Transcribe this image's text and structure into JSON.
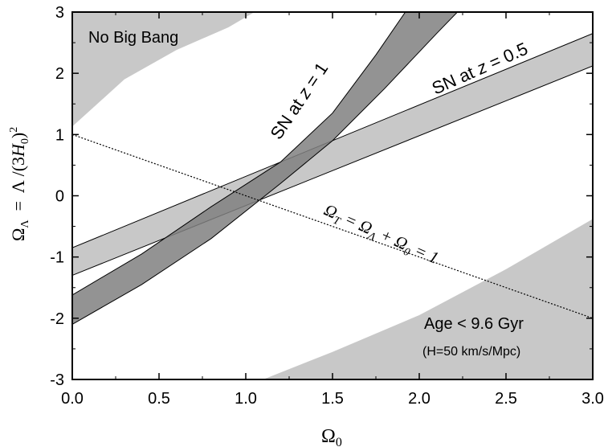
{
  "chart_data": {
    "type": "area",
    "xlabel": "Ω0",
    "ylabel": "ΩΛ = Λ/(3H0)²",
    "xlim": [
      0.0,
      3.0
    ],
    "ylim": [
      -3,
      3
    ],
    "x_ticks": [
      "0.0",
      "0.5",
      "1.0",
      "1.5",
      "2.0",
      "2.5",
      "3.0"
    ],
    "y_ticks": [
      "3",
      "2",
      "1",
      "0",
      "-1",
      "-2",
      "-3"
    ],
    "grid": false,
    "regions": [
      {
        "name": "No Big Bang",
        "fill": "#c8c8c8",
        "boundary": [
          [
            0.0,
            1.13
          ],
          [
            0.3,
            1.9
          ],
          [
            0.6,
            2.38
          ],
          [
            0.9,
            2.75
          ],
          [
            1.05,
            3.0
          ]
        ],
        "label": "No Big Bang"
      },
      {
        "name": "Age < 9.6 Gyr",
        "fill": "#c8c8c8",
        "boundary": [
          [
            1.1,
            -3.0
          ],
          [
            1.5,
            -2.55
          ],
          [
            2.0,
            -1.95
          ],
          [
            2.5,
            -1.2
          ],
          [
            3.0,
            -0.38
          ]
        ],
        "label": "Age < 9.6 Gyr",
        "sublabel": "(H=50 km/s/Mpc)"
      }
    ],
    "series": [
      {
        "name": "SN at z = 0.5",
        "fill": "#c8c8c8",
        "upper": [
          [
            0.0,
            -0.85
          ],
          [
            3.0,
            2.65
          ]
        ],
        "lower": [
          [
            0.0,
            -1.3
          ],
          [
            3.0,
            2.12
          ]
        ]
      },
      {
        "name": "SN at z = 1",
        "fill": "#808080",
        "upper": [
          [
            0.0,
            -1.62
          ],
          [
            0.4,
            -0.95
          ],
          [
            0.8,
            -0.18
          ],
          [
            1.2,
            0.55
          ],
          [
            1.5,
            1.35
          ],
          [
            1.75,
            2.3
          ],
          [
            1.92,
            3.0
          ]
        ],
        "lower": [
          [
            0.0,
            -2.1
          ],
          [
            0.4,
            -1.45
          ],
          [
            0.8,
            -0.7
          ],
          [
            1.2,
            0.2
          ],
          [
            1.5,
            0.9
          ],
          [
            1.8,
            1.75
          ],
          [
            2.1,
            2.65
          ],
          [
            2.22,
            3.0
          ]
        ]
      }
    ],
    "reference_line": {
      "points": [
        [
          0.0,
          1.0
        ],
        [
          3.0,
          -2.0
        ]
      ],
      "style": "dotted",
      "label_main": "Ω",
      "label_sub1": "T",
      "label_mid": " = Ω",
      "label_sub2": "Λ",
      "label_mid2": " + Ω",
      "label_sub3": "0",
      "label_end": " = 1"
    },
    "band_labels": {
      "z05_prefix": "SN at ",
      "z05_var": "z",
      "z05_suffix": " = 0.5",
      "z1_prefix": "SN at ",
      "z1_var": "z",
      "z1_suffix": " = 1"
    },
    "ylabel_parts": {
      "omega": "Ω",
      "lambda_sub": "Λ",
      "eq": "  =  Λ /(3",
      "h": "H",
      "h_sub": "0",
      "close": ")",
      "sq": "2"
    },
    "xlabel_parts": {
      "omega": "Ω",
      "sub": "0"
    }
  }
}
